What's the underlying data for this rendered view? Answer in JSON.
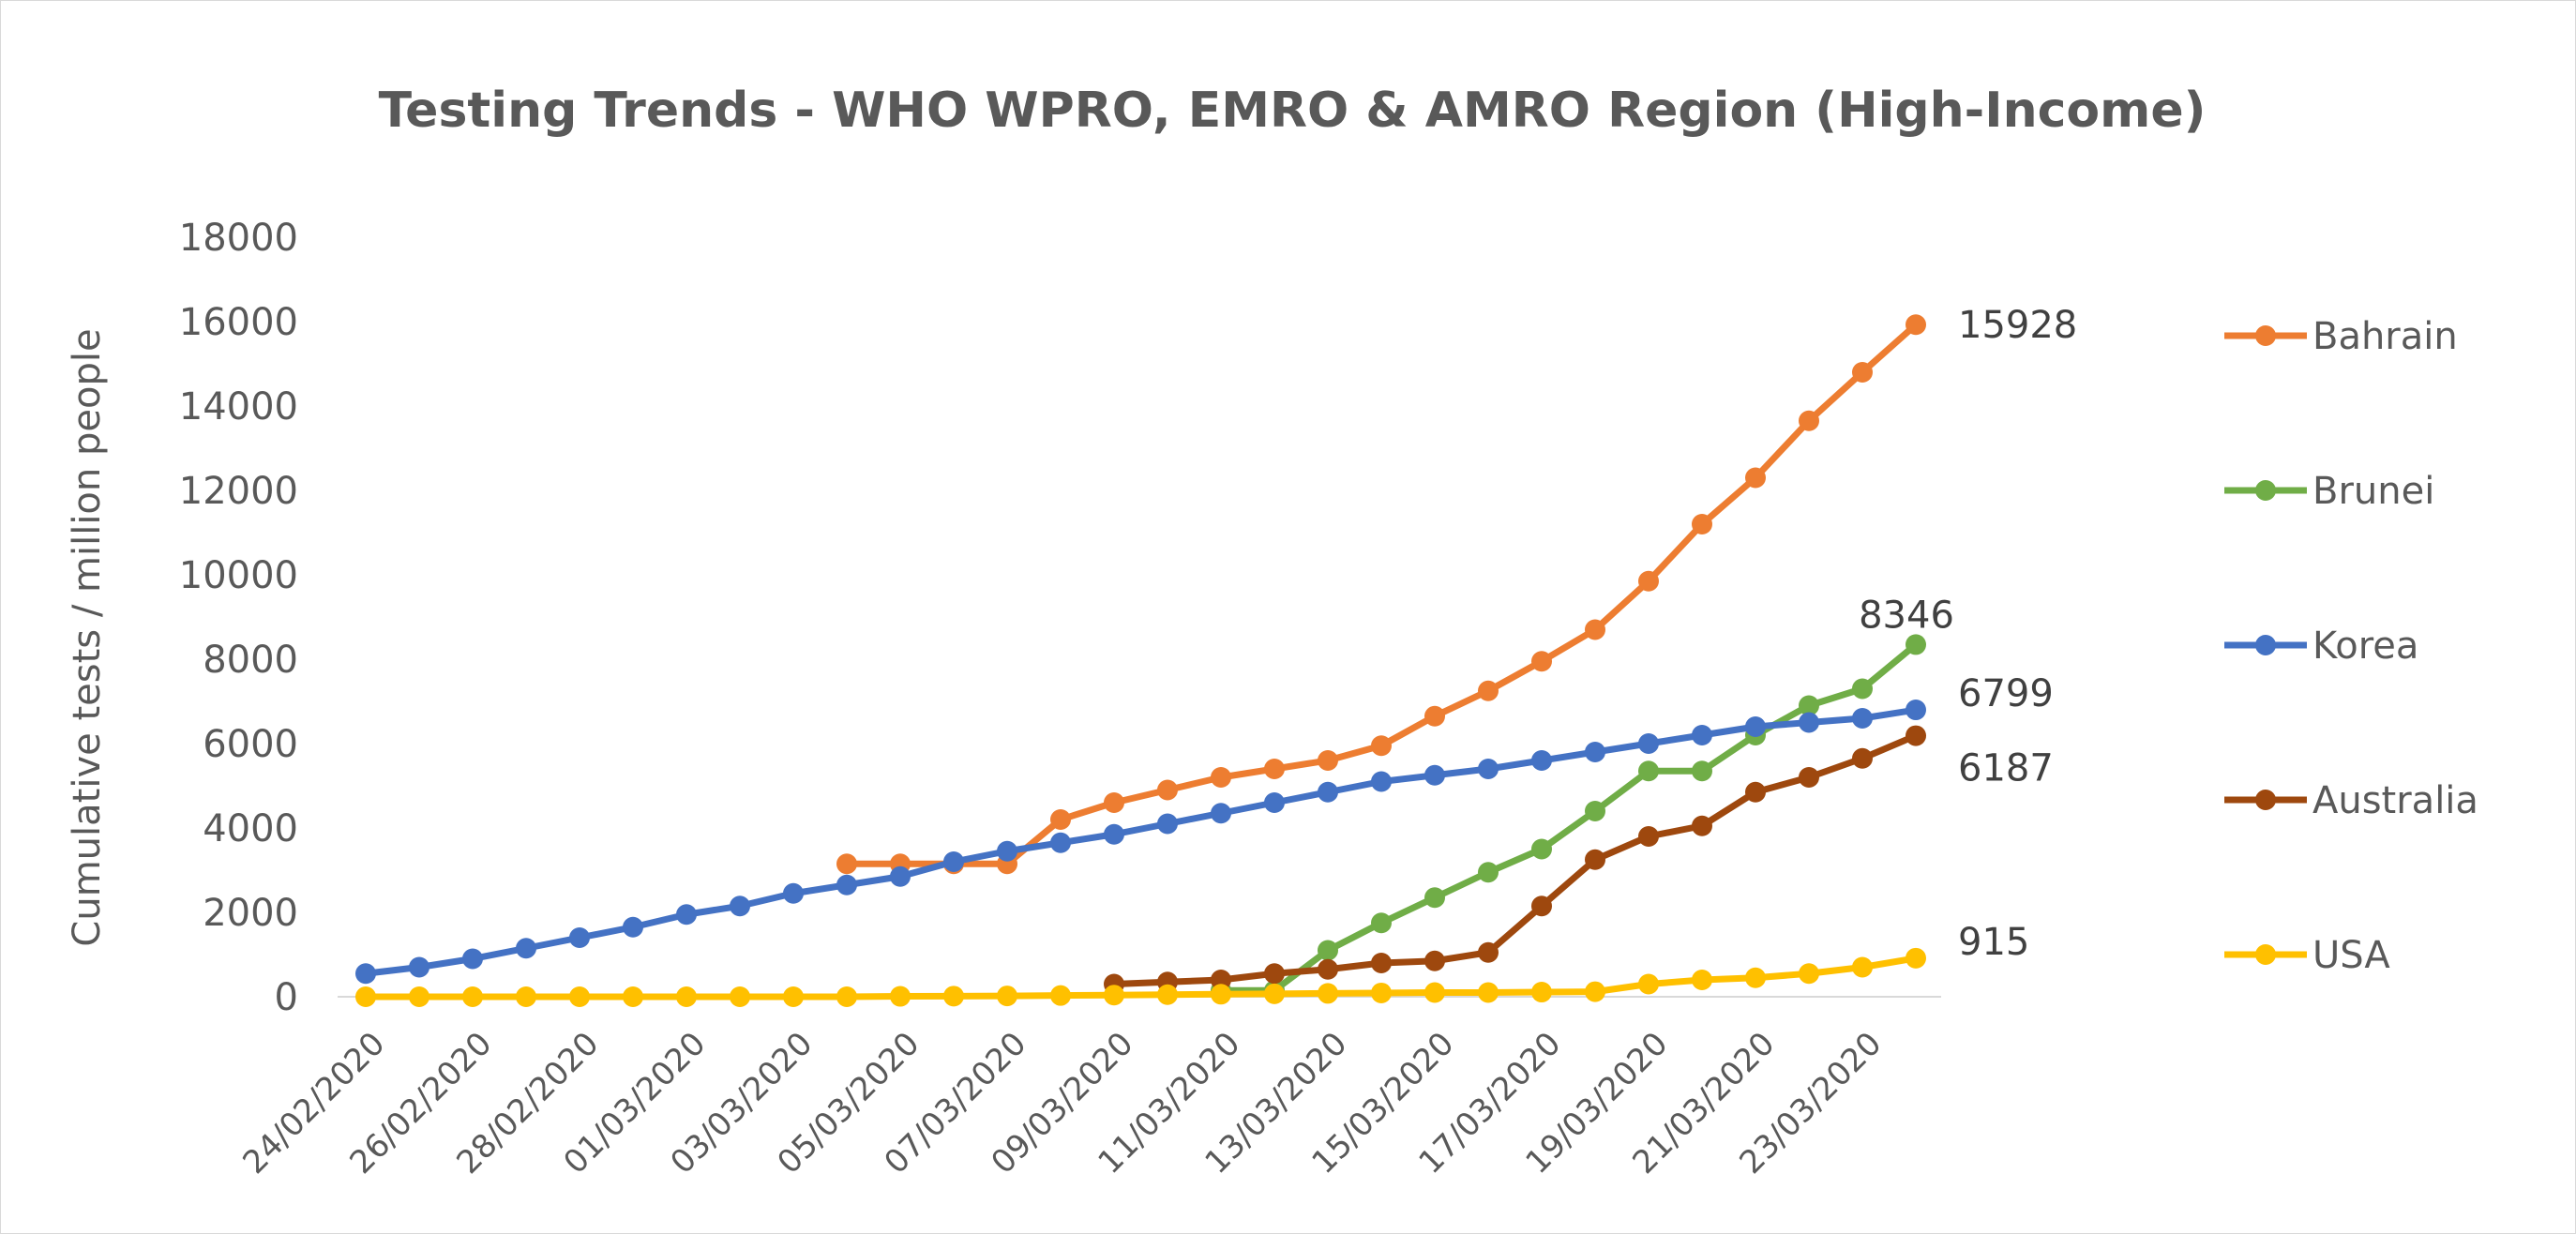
{
  "chart_data": {
    "type": "line",
    "title": "Testing Trends -  WHO WPRO, EMRO & AMRO Region (High-Income)",
    "xlabel": "",
    "ylabel": "Cumulative tests / million people",
    "ylim": [
      0,
      18000
    ],
    "yticks": [
      "0",
      "2000",
      "4000",
      "6000",
      "8000",
      "10000",
      "12000",
      "14000",
      "16000",
      "18000"
    ],
    "x": [
      "24/02/2020",
      "25/02/2020",
      "26/02/2020",
      "27/02/2020",
      "28/02/2020",
      "29/02/2020",
      "01/03/2020",
      "02/03/2020",
      "03/03/2020",
      "04/03/2020",
      "05/03/2020",
      "06/03/2020",
      "07/03/2020",
      "08/03/2020",
      "09/03/2020",
      "10/03/2020",
      "11/03/2020",
      "12/03/2020",
      "13/03/2020",
      "14/03/2020",
      "15/03/2020",
      "16/03/2020",
      "17/03/2020",
      "18/03/2020",
      "19/03/2020",
      "20/03/2020",
      "21/03/2020",
      "22/03/2020",
      "23/03/2020",
      "24/03/2020"
    ],
    "xtick_labels": [
      "24/02/2020",
      "26/02/2020",
      "28/02/2020",
      "01/03/2020",
      "03/03/2020",
      "05/03/2020",
      "07/03/2020",
      "09/03/2020",
      "11/03/2020",
      "13/03/2020",
      "15/03/2020",
      "17/03/2020",
      "19/03/2020",
      "21/03/2020",
      "23/03/2020"
    ],
    "grid": false,
    "legend": "right",
    "series": [
      {
        "name": "Bahrain",
        "color": "#ED7D31",
        "values": [
          null,
          null,
          null,
          null,
          null,
          null,
          null,
          null,
          null,
          3150,
          3150,
          3150,
          3150,
          4200,
          4600,
          4900,
          5200,
          5400,
          5600,
          5950,
          6650,
          7250,
          7950,
          8700,
          9850,
          11200,
          12300,
          13650,
          14800,
          15928
        ],
        "end_label": "15928"
      },
      {
        "name": "Brunei",
        "color": "#70AD47",
        "values": [
          null,
          null,
          null,
          null,
          null,
          null,
          null,
          null,
          null,
          null,
          null,
          null,
          null,
          null,
          null,
          null,
          150,
          150,
          1100,
          1750,
          2350,
          2950,
          3500,
          4400,
          5350,
          5350,
          6200,
          6900,
          7300,
          8346
        ],
        "end_label": "8346"
      },
      {
        "name": "Korea",
        "color": "#4472C4",
        "values": [
          550,
          700,
          900,
          1150,
          1400,
          1650,
          1950,
          2150,
          2450,
          2650,
          2850,
          3200,
          3450,
          3650,
          3850,
          4100,
          4350,
          4600,
          4850,
          5100,
          5250,
          5400,
          5600,
          5800,
          6000,
          6200,
          6400,
          6500,
          6600,
          6799
        ],
        "end_label": "6799"
      },
      {
        "name": "Australia",
        "color": "#9E480E",
        "values": [
          null,
          null,
          null,
          null,
          null,
          null,
          null,
          null,
          null,
          null,
          null,
          null,
          null,
          null,
          300,
          350,
          400,
          550,
          650,
          800,
          850,
          1050,
          2150,
          3250,
          3800,
          4050,
          4850,
          5200,
          5650,
          6187
        ],
        "end_label": "6187"
      },
      {
        "name": "USA",
        "color": "#FFC000",
        "values": [
          0,
          0,
          0,
          0,
          0,
          0,
          0,
          0,
          0,
          0,
          10,
          15,
          20,
          30,
          40,
          50,
          60,
          70,
          80,
          90,
          100,
          100,
          110,
          120,
          300,
          400,
          450,
          550,
          700,
          915
        ],
        "end_label": "915"
      }
    ]
  }
}
